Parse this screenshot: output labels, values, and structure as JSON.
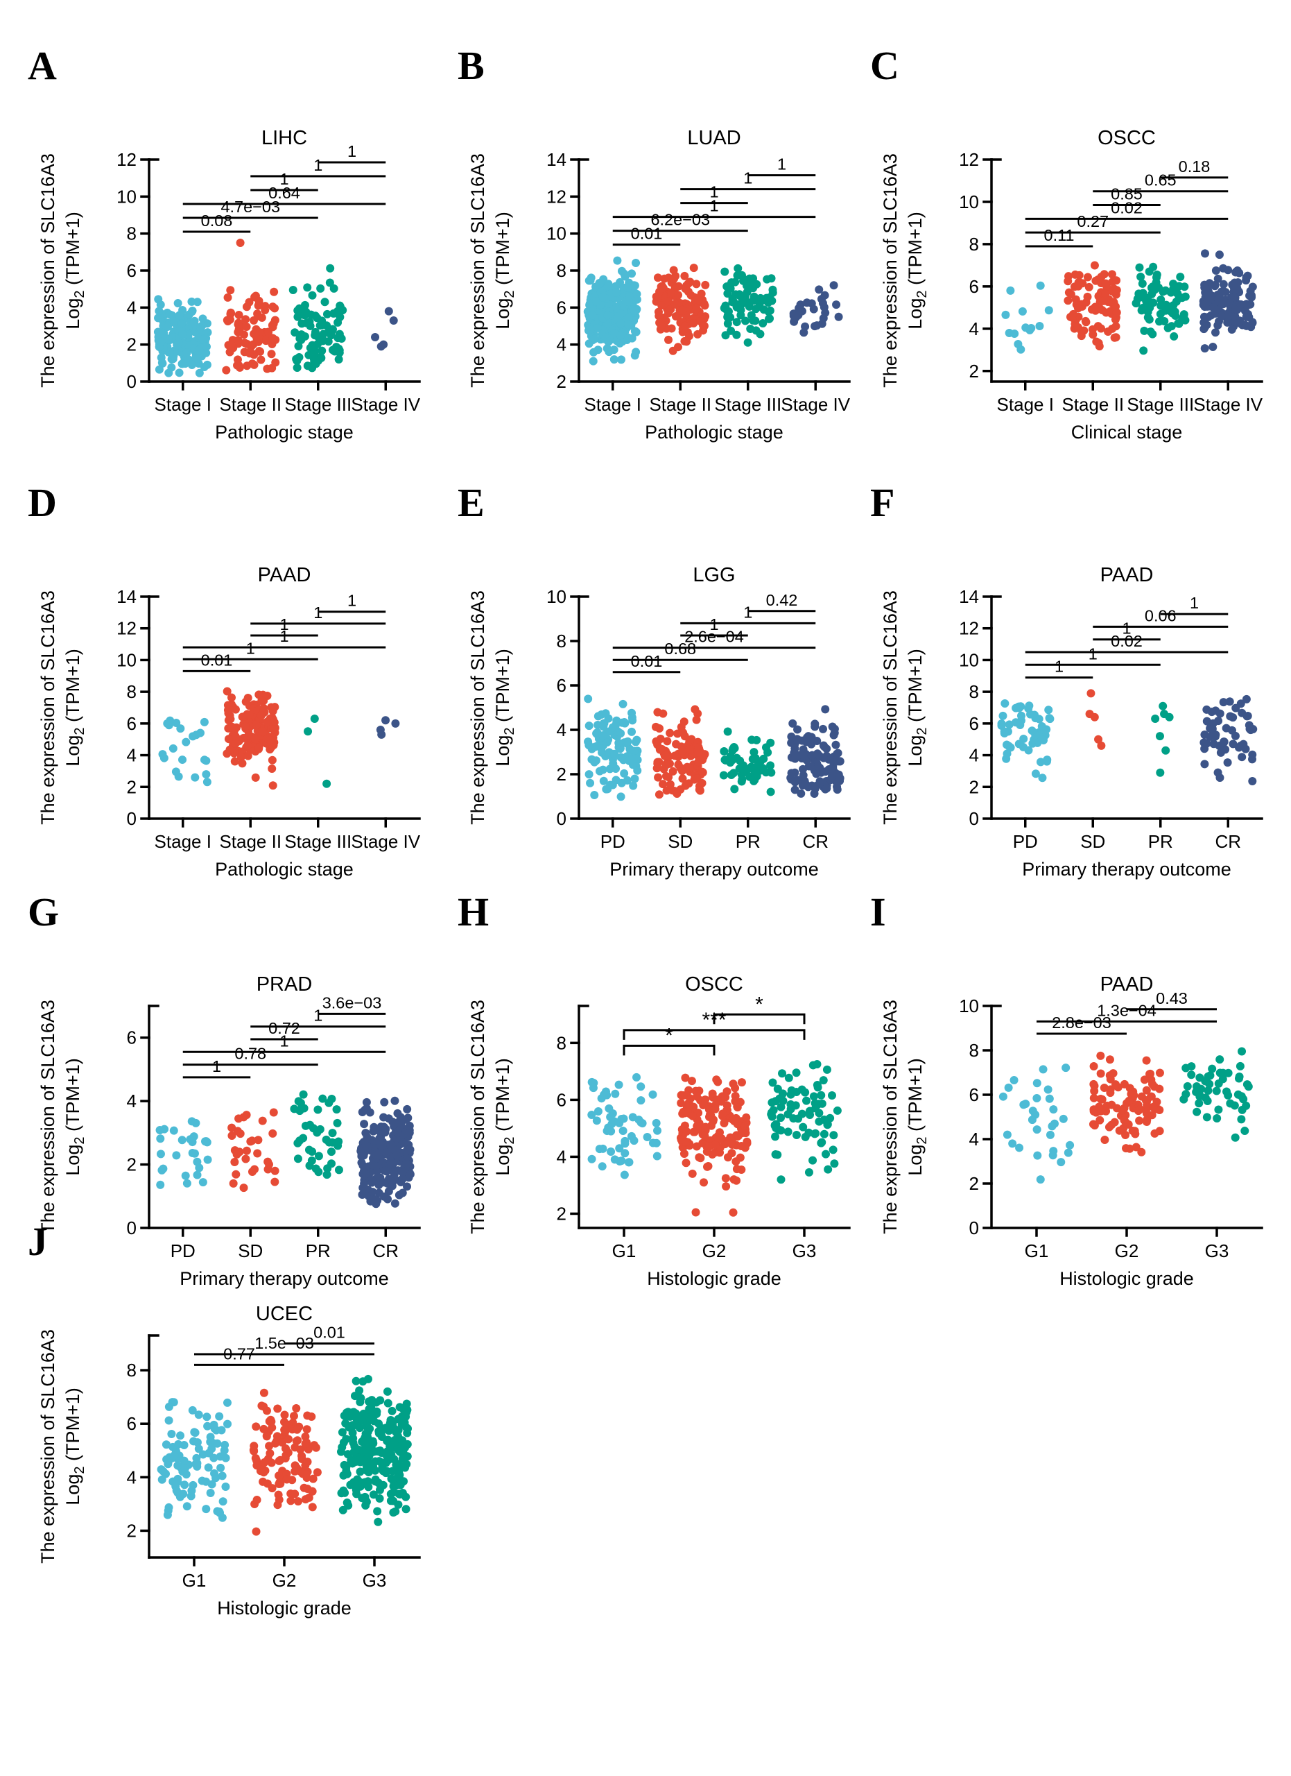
{
  "palette": [
    "#4DBBD5",
    "#E64B35",
    "#00A087",
    "#3C5488"
  ],
  "axis_color": "#000000",
  "chart_data": [
    {
      "letter": "A",
      "title": "LIHC",
      "type": "strip",
      "xlabel": "Pathologic stage",
      "ylabel": [
        "The expression of SLC16A3",
        "Log2 (TPM+1)"
      ],
      "ylim": [
        0,
        12
      ],
      "yticks": [
        0,
        2,
        4,
        6,
        8,
        10,
        12
      ],
      "categories": [
        "Stage I",
        "Stage II",
        "Stage III",
        "Stage IV"
      ],
      "groups": [
        {
          "n": 170,
          "center": 2.0,
          "spread": 0.9,
          "min": 0.4,
          "max": 6.5
        },
        {
          "n": 87,
          "center": 2.4,
          "spread": 1.2,
          "min": 0.5,
          "max": 6.3,
          "values": [
            7.5
          ]
        },
        {
          "n": 82,
          "center": 2.6,
          "spread": 1.3,
          "min": 0.7,
          "max": 6.2
        },
        {
          "values": [
            1.9,
            2.0,
            2.4,
            3.3,
            3.8
          ]
        }
      ],
      "comparisons": [
        {
          "g1": 0,
          "g2": 1,
          "label": "0.08",
          "y": 8.1
        },
        {
          "g1": 0,
          "g2": 2,
          "label": "4.7e−03",
          "y": 8.85
        },
        {
          "g1": 0,
          "g2": 3,
          "label": "0.64",
          "y": 9.6
        },
        {
          "g1": 1,
          "g2": 2,
          "label": "1",
          "y": 10.35
        },
        {
          "g1": 1,
          "g2": 3,
          "label": "1",
          "y": 11.1
        },
        {
          "g1": 2,
          "g2": 3,
          "label": "1",
          "y": 11.85
        }
      ],
      "bracket_style": "line"
    },
    {
      "letter": "B",
      "title": "LUAD",
      "type": "strip",
      "xlabel": "Pathologic stage",
      "ylabel": [
        "The expression of SLC16A3",
        "Log2 (TPM+1)"
      ],
      "ylim": [
        2,
        14
      ],
      "yticks": [
        2,
        4,
        6,
        8,
        10,
        12,
        14
      ],
      "categories": [
        "Stage I",
        "Stage II",
        "Stage III",
        "Stage IV"
      ],
      "groups": [
        {
          "n": 275,
          "center": 5.7,
          "spread": 1.0,
          "min": 2.0,
          "max": 8.7
        },
        {
          "n": 120,
          "center": 6.0,
          "spread": 0.95,
          "min": 3.4,
          "max": 8.3
        },
        {
          "n": 80,
          "center": 6.2,
          "spread": 0.95,
          "min": 3.6,
          "max": 8.2
        },
        {
          "n": 26,
          "center": 5.9,
          "spread": 0.9,
          "min": 4.1,
          "max": 7.3
        }
      ],
      "comparisons": [
        {
          "g1": 0,
          "g2": 1,
          "label": "0.01",
          "y": 9.4
        },
        {
          "g1": 0,
          "g2": 2,
          "label": "6.2e−03",
          "y": 10.15
        },
        {
          "g1": 0,
          "g2": 3,
          "label": "1",
          "y": 10.9
        },
        {
          "g1": 1,
          "g2": 2,
          "label": "1",
          "y": 11.65
        },
        {
          "g1": 1,
          "g2": 3,
          "label": "1",
          "y": 12.4
        },
        {
          "g1": 2,
          "g2": 3,
          "label": "1",
          "y": 13.15
        }
      ],
      "bracket_style": "line"
    },
    {
      "letter": "C",
      "title": "OSCC",
      "type": "strip",
      "xlabel": "Clinical stage",
      "ylabel": [
        "The expression of SLC16A3",
        "Log2 (TPM+1)"
      ],
      "ylim": [
        1.5,
        12
      ],
      "yticks": [
        2,
        4,
        6,
        8,
        10,
        12
      ],
      "categories": [
        "Stage I",
        "Stage II",
        "Stage III",
        "Stage IV"
      ],
      "groups": [
        {
          "n": 13,
          "center": 4.5,
          "spread": 1.2,
          "min": 1.8,
          "max": 6.3
        },
        {
          "n": 95,
          "center": 5.2,
          "spread": 0.9,
          "min": 3.0,
          "max": 7.7
        },
        {
          "n": 70,
          "center": 5.2,
          "spread": 0.9,
          "min": 2.9,
          "max": 7.0
        },
        {
          "n": 135,
          "center": 5.3,
          "spread": 0.85,
          "min": 3.0,
          "max": 7.6
        }
      ],
      "comparisons": [
        {
          "g1": 0,
          "g2": 1,
          "label": "0.11",
          "y": 7.9
        },
        {
          "g1": 0,
          "g2": 2,
          "label": "0.27",
          "y": 8.55
        },
        {
          "g1": 0,
          "g2": 3,
          "label": "0.02",
          "y": 9.2
        },
        {
          "g1": 1,
          "g2": 2,
          "label": "0.85",
          "y": 9.85
        },
        {
          "g1": 1,
          "g2": 3,
          "label": "0.65",
          "y": 10.5
        },
        {
          "g1": 2,
          "g2": 3,
          "label": "0.18",
          "y": 11.15
        }
      ],
      "bracket_style": "line"
    },
    {
      "letter": "D",
      "title": "PAAD",
      "type": "strip",
      "xlabel": "Pathologic stage",
      "ylabel": [
        "The expression of SLC16A3",
        "Log2 (TPM+1)"
      ],
      "ylim": [
        0,
        14
      ],
      "yticks": [
        0,
        2,
        4,
        6,
        8,
        10,
        12,
        14
      ],
      "categories": [
        "Stage I",
        "Stage II",
        "Stage III",
        "Stage IV"
      ],
      "groups": [
        {
          "n": 21,
          "center": 4.8,
          "spread": 1.5,
          "min": 1.8,
          "max": 7.8
        },
        {
          "n": 145,
          "center": 5.7,
          "spread": 1.1,
          "min": 0.9,
          "max": 8.5
        },
        {
          "values": [
            2.2,
            5.5,
            6.3
          ]
        },
        {
          "values": [
            5.3,
            5.6,
            6.0,
            6.2
          ]
        }
      ],
      "comparisons": [
        {
          "g1": 0,
          "g2": 1,
          "label": "0.01",
          "y": 9.3
        },
        {
          "g1": 0,
          "g2": 2,
          "label": "1",
          "y": 10.05
        },
        {
          "g1": 0,
          "g2": 3,
          "label": "1",
          "y": 10.8
        },
        {
          "g1": 1,
          "g2": 2,
          "label": "1",
          "y": 11.55
        },
        {
          "g1": 1,
          "g2": 3,
          "label": "1",
          "y": 12.3
        },
        {
          "g1": 2,
          "g2": 3,
          "label": "1",
          "y": 13.05
        }
      ],
      "bracket_style": "line"
    },
    {
      "letter": "E",
      "title": "LGG",
      "type": "strip",
      "xlabel": "Primary therapy outcome",
      "ylabel": [
        "The expression of SLC16A3",
        "Log2 (TPM+1)"
      ],
      "ylim": [
        0,
        10
      ],
      "yticks": [
        0,
        2,
        4,
        6,
        8,
        10
      ],
      "categories": [
        "PD",
        "SD",
        "PR",
        "CR"
      ],
      "groups": [
        {
          "n": 105,
          "center": 2.9,
          "spread": 1.0,
          "min": 0.9,
          "max": 6.0
        },
        {
          "n": 95,
          "center": 2.6,
          "spread": 0.95,
          "min": 0.9,
          "max": 6.3
        },
        {
          "n": 50,
          "center": 2.6,
          "spread": 0.7,
          "min": 1.2,
          "max": 4.3
        },
        {
          "n": 115,
          "center": 2.5,
          "spread": 0.8,
          "min": 1.0,
          "max": 5.6
        }
      ],
      "comparisons": [
        {
          "g1": 0,
          "g2": 1,
          "label": "0.01",
          "y": 6.6
        },
        {
          "g1": 0,
          "g2": 2,
          "label": "0.68",
          "y": 7.15
        },
        {
          "g1": 0,
          "g2": 3,
          "label": "2.6e−04",
          "y": 7.7
        },
        {
          "g1": 1,
          "g2": 2,
          "label": "1",
          "y": 8.25
        },
        {
          "g1": 1,
          "g2": 3,
          "label": "1",
          "y": 8.8
        },
        {
          "g1": 2,
          "g2": 3,
          "label": "0.42",
          "y": 9.35
        }
      ],
      "bracket_style": "line"
    },
    {
      "letter": "F",
      "title": "PAAD",
      "type": "strip",
      "xlabel": "Primary therapy outcome",
      "ylabel": [
        "The expression of SLC16A3",
        "Log2 (TPM+1)"
      ],
      "ylim": [
        0,
        14
      ],
      "yticks": [
        0,
        2,
        4,
        6,
        8,
        10,
        12,
        14
      ],
      "categories": [
        "PD",
        "SD",
        "PR",
        "CR"
      ],
      "groups": [
        {
          "n": 52,
          "center": 5.8,
          "spread": 1.1,
          "min": 2.5,
          "max": 8.0
        },
        {
          "values": [
            4.6,
            5.0,
            6.4,
            6.6,
            7.9
          ]
        },
        {
          "values": [
            2.9,
            4.3,
            5.2,
            6.3,
            6.4,
            6.6,
            7.1
          ]
        },
        {
          "n": 55,
          "center": 5.2,
          "spread": 1.4,
          "min": 1.0,
          "max": 8.0
        }
      ],
      "comparisons": [
        {
          "g1": 0,
          "g2": 1,
          "label": "1",
          "y": 8.9
        },
        {
          "g1": 0,
          "g2": 2,
          "label": "1",
          "y": 9.7
        },
        {
          "g1": 0,
          "g2": 3,
          "label": "0.02",
          "y": 10.5
        },
        {
          "g1": 1,
          "g2": 2,
          "label": "1",
          "y": 11.3
        },
        {
          "g1": 1,
          "g2": 3,
          "label": "0.06",
          "y": 12.1
        },
        {
          "g1": 2,
          "g2": 3,
          "label": "1",
          "y": 12.9
        }
      ],
      "bracket_style": "line"
    },
    {
      "letter": "G",
      "title": "PRAD",
      "type": "strip",
      "xlabel": "Primary therapy outcome",
      "ylabel": [
        "The expression of SLC16A3",
        "Log2 (TPM+1)"
      ],
      "ylim": [
        0,
        7
      ],
      "yticks": [
        0,
        2,
        4,
        6
      ],
      "categories": [
        "PD",
        "SD",
        "PR",
        "CR"
      ],
      "groups": [
        {
          "n": 27,
          "center": 2.3,
          "spread": 0.75,
          "min": 1.0,
          "max": 3.8
        },
        {
          "n": 30,
          "center": 2.4,
          "spread": 0.75,
          "min": 1.2,
          "max": 4.0
        },
        {
          "n": 40,
          "center": 2.8,
          "spread": 0.75,
          "min": 1.5,
          "max": 4.3
        },
        {
          "n": 230,
          "center": 2.3,
          "spread": 0.7,
          "min": 0.7,
          "max": 4.5
        }
      ],
      "comparisons": [
        {
          "g1": 0,
          "g2": 1,
          "label": "1",
          "y": 4.75
        },
        {
          "g1": 0,
          "g2": 2,
          "label": "0.78",
          "y": 5.15
        },
        {
          "g1": 0,
          "g2": 3,
          "label": "1",
          "y": 5.55
        },
        {
          "g1": 1,
          "g2": 2,
          "label": "0.72",
          "y": 5.95
        },
        {
          "g1": 1,
          "g2": 3,
          "label": "1",
          "y": 6.35
        },
        {
          "g1": 2,
          "g2": 3,
          "label": "3.6e−03",
          "y": 6.75
        }
      ],
      "bracket_style": "line"
    },
    {
      "letter": "H",
      "title": "OSCC",
      "type": "strip",
      "xlabel": "Histologic grade",
      "ylabel": [
        "The expression of SLC16A3",
        "Log2 (TPM+1)"
      ],
      "ylim": [
        1.5,
        9.3
      ],
      "yticks": [
        2,
        4,
        6,
        8
      ],
      "categories": [
        "G1",
        "G2",
        "G3"
      ],
      "groups": [
        {
          "n": 55,
          "center": 5.0,
          "spread": 1.0,
          "min": 2.9,
          "max": 7.3
        },
        {
          "n": 160,
          "center": 5.1,
          "spread": 1.0,
          "min": 1.7,
          "max": 7.1
        },
        {
          "n": 78,
          "center": 5.6,
          "spread": 0.95,
          "min": 2.4,
          "max": 7.3
        }
      ],
      "comparisons": [
        {
          "g1": 0,
          "g2": 1,
          "label": "*",
          "y": 7.9
        },
        {
          "g1": 0,
          "g2": 2,
          "label": "***",
          "y": 8.45
        },
        {
          "g1": 1,
          "g2": 2,
          "label": "*",
          "y": 9.0
        }
      ],
      "bracket_style": "square"
    },
    {
      "letter": "I",
      "title": "PAAD",
      "type": "strip",
      "xlabel": "Histologic grade",
      "ylabel": [
        "The expression of SLC16A3",
        "Log2 (TPM+1)"
      ],
      "ylim": [
        0,
        10
      ],
      "yticks": [
        0,
        2,
        4,
        6,
        8,
        10
      ],
      "categories": [
        "G1",
        "G2",
        "G3"
      ],
      "groups": [
        {
          "n": 30,
          "center": 5.0,
          "spread": 1.4,
          "min": 1.0,
          "max": 7.5
        },
        {
          "n": 95,
          "center": 5.7,
          "spread": 0.95,
          "min": 3.3,
          "max": 7.8
        },
        {
          "n": 50,
          "center": 6.0,
          "spread": 0.9,
          "min": 3.9,
          "max": 8.0
        }
      ],
      "comparisons": [
        {
          "g1": 0,
          "g2": 1,
          "label": "2.8e−03",
          "y": 8.75
        },
        {
          "g1": 0,
          "g2": 2,
          "label": "1.3e−04",
          "y": 9.3
        },
        {
          "g1": 1,
          "g2": 2,
          "label": "0.43",
          "y": 9.85
        }
      ],
      "bracket_style": "line"
    },
    {
      "letter": "J",
      "title": "UCEC",
      "type": "strip",
      "xlabel": "Histologic grade",
      "ylabel": [
        "The expression of SLC16A3",
        "Log2 (TPM+1)"
      ],
      "ylim": [
        1,
        9.3
      ],
      "yticks": [
        2,
        4,
        6,
        8
      ],
      "categories": [
        "G1",
        "G2",
        "G3"
      ],
      "groups": [
        {
          "n": 95,
          "center": 4.6,
          "spread": 1.1,
          "min": 1.2,
          "max": 7.3
        },
        {
          "n": 115,
          "center": 4.8,
          "spread": 1.1,
          "min": 1.9,
          "max": 7.2
        },
        {
          "n": 260,
          "center": 5.0,
          "spread": 1.1,
          "min": 1.9,
          "max": 7.8
        }
      ],
      "comparisons": [
        {
          "g1": 0,
          "g2": 1,
          "label": "0.77",
          "y": 8.2
        },
        {
          "g1": 0,
          "g2": 2,
          "label": "1.5e−03",
          "y": 8.6
        },
        {
          "g1": 1,
          "g2": 2,
          "label": "0.01",
          "y": 9.0
        }
      ],
      "bracket_style": "line"
    }
  ]
}
